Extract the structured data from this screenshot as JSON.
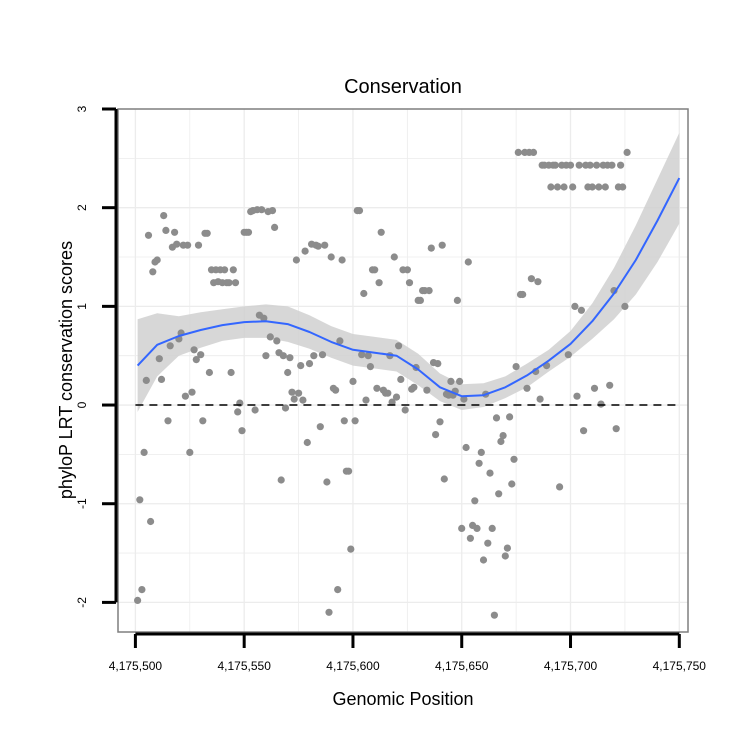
{
  "chart_data": {
    "type": "scatter",
    "title": "Conservation",
    "xlabel": "Genomic Position",
    "ylabel": "phyloP LRT conservation scores",
    "xlim": [
      4175492,
      4175754
    ],
    "ylim": [
      -2.3,
      3.0
    ],
    "x_ticks": [
      4175500,
      4175550,
      4175600,
      4175650,
      4175700,
      4175750
    ],
    "x_tick_labels": [
      "4,175,500",
      "4,175,550",
      "4,175,600",
      "4,175,650",
      "4,175,700",
      "4,175,750"
    ],
    "y_ticks": [
      -2,
      -1,
      0,
      1,
      2,
      3
    ],
    "y_tick_labels": [
      "-2",
      "-1",
      "0",
      "1",
      "2",
      "3"
    ],
    "grid": true,
    "reference_line": {
      "y": 0,
      "style": "dashed"
    },
    "colors": {
      "points": "#8c8c8c",
      "smooth_line": "#3366ff",
      "confidence_band": "#d0d0d0",
      "panel_border": "#7f7f7f",
      "grid": "#ececec"
    },
    "smooth": {
      "x": [
        4175501,
        4175510,
        4175520,
        4175530,
        4175540,
        4175550,
        4175560,
        4175570,
        4175580,
        4175590,
        4175600,
        4175610,
        4175620,
        4175630,
        4175640,
        4175650,
        4175660,
        4175670,
        4175680,
        4175690,
        4175700,
        4175710,
        4175720,
        4175730,
        4175740,
        4175750
      ],
      "y": [
        0.4,
        0.61,
        0.7,
        0.76,
        0.81,
        0.84,
        0.85,
        0.82,
        0.74,
        0.64,
        0.56,
        0.53,
        0.5,
        0.36,
        0.18,
        0.09,
        0.1,
        0.18,
        0.3,
        0.45,
        0.62,
        0.85,
        1.13,
        1.47,
        1.87,
        2.3
      ],
      "upper": [
        0.87,
        0.93,
        0.9,
        0.94,
        0.97,
        1.0,
        1.02,
        1.0,
        0.91,
        0.8,
        0.72,
        0.69,
        0.66,
        0.52,
        0.32,
        0.21,
        0.22,
        0.29,
        0.42,
        0.56,
        0.75,
        1.03,
        1.39,
        1.82,
        2.29,
        2.76
      ],
      "lower": [
        -0.07,
        0.29,
        0.5,
        0.58,
        0.65,
        0.68,
        0.68,
        0.64,
        0.57,
        0.48,
        0.4,
        0.37,
        0.34,
        0.2,
        0.04,
        -0.05,
        -0.02,
        0.07,
        0.18,
        0.34,
        0.49,
        0.67,
        0.87,
        1.12,
        1.45,
        1.84
      ]
    },
    "points": [
      [
        4175501,
        -1.98
      ],
      [
        4175502,
        -0.96
      ],
      [
        4175503,
        -1.87
      ],
      [
        4175504,
        -0.48
      ],
      [
        4175505,
        0.25
      ],
      [
        4175506,
        1.72
      ],
      [
        4175507,
        -1.18
      ],
      [
        4175508,
        1.35
      ],
      [
        4175509,
        1.45
      ],
      [
        4175510,
        1.47
      ],
      [
        4175511,
        0.47
      ],
      [
        4175512,
        0.26
      ],
      [
        4175513,
        1.92
      ],
      [
        4175514,
        1.77
      ],
      [
        4175515,
        -0.16
      ],
      [
        4175516,
        0.6
      ],
      [
        4175517,
        1.6
      ],
      [
        4175518,
        1.75
      ],
      [
        4175519,
        1.63
      ],
      [
        4175520,
        0.67
      ],
      [
        4175521,
        0.73
      ],
      [
        4175522,
        1.62
      ],
      [
        4175523,
        0.09
      ],
      [
        4175524,
        1.62
      ],
      [
        4175525,
        -0.48
      ],
      [
        4175526,
        0.13
      ],
      [
        4175527,
        0.56
      ],
      [
        4175528,
        0.46
      ],
      [
        4175529,
        1.62
      ],
      [
        4175530,
        0.51
      ],
      [
        4175531,
        -0.16
      ],
      [
        4175532,
        1.74
      ],
      [
        4175533,
        1.74
      ],
      [
        4175534,
        0.33
      ],
      [
        4175535,
        1.37
      ],
      [
        4175536,
        1.24
      ],
      [
        4175537,
        1.37
      ],
      [
        4175538,
        1.25
      ],
      [
        4175539,
        1.37
      ],
      [
        4175540,
        1.24
      ],
      [
        4175541,
        1.37
      ],
      [
        4175542,
        1.24
      ],
      [
        4175543,
        1.24
      ],
      [
        4175544,
        0.33
      ],
      [
        4175545,
        1.37
      ],
      [
        4175546,
        1.24
      ],
      [
        4175547,
        -0.07
      ],
      [
        4175548,
        0.02
      ],
      [
        4175549,
        -0.26
      ],
      [
        4175550,
        1.75
      ],
      [
        4175551,
        1.75
      ],
      [
        4175552,
        1.75
      ],
      [
        4175553,
        1.96
      ],
      [
        4175554,
        1.97
      ],
      [
        4175555,
        -0.05
      ],
      [
        4175556,
        1.98
      ],
      [
        4175557,
        0.91
      ],
      [
        4175558,
        1.98
      ],
      [
        4175559,
        0.88
      ],
      [
        4175560,
        0.5
      ],
      [
        4175561,
        1.96
      ],
      [
        4175562,
        0.69
      ],
      [
        4175563,
        1.97
      ],
      [
        4175564,
        1.8
      ],
      [
        4175565,
        0.65
      ],
      [
        4175566,
        0.53
      ],
      [
        4175567,
        -0.76
      ],
      [
        4175568,
        0.5
      ],
      [
        4175569,
        -0.03
      ],
      [
        4175570,
        0.33
      ],
      [
        4175571,
        0.48
      ],
      [
        4175572,
        0.13
      ],
      [
        4175573,
        0.06
      ],
      [
        4175574,
        1.47
      ],
      [
        4175575,
        0.12
      ],
      [
        4175576,
        0.4
      ],
      [
        4175577,
        0.05
      ],
      [
        4175578,
        1.56
      ],
      [
        4175579,
        -0.38
      ],
      [
        4175580,
        0.42
      ],
      [
        4175581,
        1.63
      ],
      [
        4175582,
        0.5
      ],
      [
        4175583,
        1.62
      ],
      [
        4175584,
        1.61
      ],
      [
        4175585,
        -0.22
      ],
      [
        4175586,
        0.51
      ],
      [
        4175587,
        1.62
      ],
      [
        4175588,
        -0.78
      ],
      [
        4175589,
        -2.1
      ],
      [
        4175590,
        1.5
      ],
      [
        4175591,
        0.17
      ],
      [
        4175592,
        0.15
      ],
      [
        4175593,
        -1.87
      ],
      [
        4175594,
        0.65
      ],
      [
        4175595,
        1.47
      ],
      [
        4175596,
        -0.16
      ],
      [
        4175597,
        -0.67
      ],
      [
        4175598,
        -0.67
      ],
      [
        4175599,
        -1.46
      ],
      [
        4175600,
        0.24
      ],
      [
        4175601,
        -0.16
      ],
      [
        4175602,
        1.97
      ],
      [
        4175603,
        1.97
      ],
      [
        4175604,
        0.51
      ],
      [
        4175605,
        1.13
      ],
      [
        4175606,
        0.05
      ],
      [
        4175607,
        0.5
      ],
      [
        4175608,
        0.39
      ],
      [
        4175609,
        1.37
      ],
      [
        4175610,
        1.37
      ],
      [
        4175611,
        0.17
      ],
      [
        4175612,
        1.24
      ],
      [
        4175613,
        1.75
      ],
      [
        4175614,
        0.15
      ],
      [
        4175615,
        0.12
      ],
      [
        4175616,
        0.12
      ],
      [
        4175617,
        0.5
      ],
      [
        4175618,
        0.03
      ],
      [
        4175619,
        1.5
      ],
      [
        4175620,
        0.08
      ],
      [
        4175621,
        0.6
      ],
      [
        4175622,
        0.26
      ],
      [
        4175623,
        1.37
      ],
      [
        4175624,
        -0.05
      ],
      [
        4175625,
        1.37
      ],
      [
        4175626,
        1.24
      ],
      [
        4175627,
        0.16
      ],
      [
        4175628,
        0.18
      ],
      [
        4175629,
        0.38
      ],
      [
        4175630,
        1.06
      ],
      [
        4175631,
        1.06
      ],
      [
        4175632,
        1.16
      ],
      [
        4175633,
        1.16
      ],
      [
        4175634,
        0.15
      ],
      [
        4175635,
        1.16
      ],
      [
        4175636,
        1.59
      ],
      [
        4175637,
        0.43
      ],
      [
        4175638,
        -0.3
      ],
      [
        4175639,
        0.42
      ],
      [
        4175640,
        -0.17
      ],
      [
        4175641,
        1.62
      ],
      [
        4175642,
        -0.75
      ],
      [
        4175643,
        0.11
      ],
      [
        4175644,
        0.1
      ],
      [
        4175645,
        0.24
      ],
      [
        4175646,
        0.1
      ],
      [
        4175647,
        0.14
      ],
      [
        4175648,
        1.06
      ],
      [
        4175649,
        0.24
      ],
      [
        4175650,
        -1.25
      ],
      [
        4175651,
        0.06
      ],
      [
        4175652,
        -0.43
      ],
      [
        4175653,
        1.45
      ],
      [
        4175654,
        -1.35
      ],
      [
        4175655,
        -1.22
      ],
      [
        4175656,
        -0.97
      ],
      [
        4175657,
        -1.25
      ],
      [
        4175658,
        -0.59
      ],
      [
        4175659,
        -0.48
      ],
      [
        4175660,
        -1.57
      ],
      [
        4175661,
        0.11
      ],
      [
        4175662,
        -1.4
      ],
      [
        4175663,
        -0.69
      ],
      [
        4175664,
        -1.25
      ],
      [
        4175665,
        -2.13
      ],
      [
        4175666,
        -0.13
      ],
      [
        4175667,
        -0.9
      ],
      [
        4175668,
        -0.37
      ],
      [
        4175669,
        -0.31
      ],
      [
        4175670,
        -1.53
      ],
      [
        4175671,
        -1.45
      ],
      [
        4175672,
        -0.12
      ],
      [
        4175673,
        -0.8
      ],
      [
        4175674,
        -0.55
      ],
      [
        4175675,
        0.39
      ],
      [
        4175676,
        2.56
      ],
      [
        4175677,
        1.12
      ],
      [
        4175678,
        1.12
      ],
      [
        4175679,
        2.56
      ],
      [
        4175680,
        0.17
      ],
      [
        4175681,
        2.56
      ],
      [
        4175682,
        1.28
      ],
      [
        4175683,
        2.56
      ],
      [
        4175684,
        0.34
      ],
      [
        4175685,
        1.25
      ],
      [
        4175686,
        0.06
      ],
      [
        4175687,
        2.43
      ],
      [
        4175688,
        2.43
      ],
      [
        4175689,
        0.4
      ],
      [
        4175690,
        2.43
      ],
      [
        4175691,
        2.21
      ],
      [
        4175692,
        2.43
      ],
      [
        4175693,
        2.43
      ],
      [
        4175694,
        2.21
      ],
      [
        4175695,
        -0.83
      ],
      [
        4175696,
        2.43
      ],
      [
        4175697,
        2.21
      ],
      [
        4175698,
        2.43
      ],
      [
        4175699,
        0.51
      ],
      [
        4175700,
        2.43
      ],
      [
        4175701,
        2.21
      ],
      [
        4175702,
        1.0
      ],
      [
        4175703,
        0.09
      ],
      [
        4175704,
        2.43
      ],
      [
        4175705,
        0.96
      ],
      [
        4175706,
        -0.26
      ],
      [
        4175707,
        2.43
      ],
      [
        4175708,
        2.21
      ],
      [
        4175709,
        2.43
      ],
      [
        4175710,
        2.21
      ],
      [
        4175711,
        0.17
      ],
      [
        4175712,
        2.43
      ],
      [
        4175713,
        2.21
      ],
      [
        4175714,
        0.01
      ],
      [
        4175715,
        2.43
      ],
      [
        4175716,
        2.21
      ],
      [
        4175717,
        2.43
      ],
      [
        4175718,
        0.2
      ],
      [
        4175719,
        2.43
      ],
      [
        4175720,
        1.16
      ],
      [
        4175721,
        -0.24
      ],
      [
        4175722,
        2.21
      ],
      [
        4175723,
        2.43
      ],
      [
        4175724,
        2.21
      ],
      [
        4175725,
        1.0
      ],
      [
        4175726,
        2.56
      ]
    ]
  }
}
